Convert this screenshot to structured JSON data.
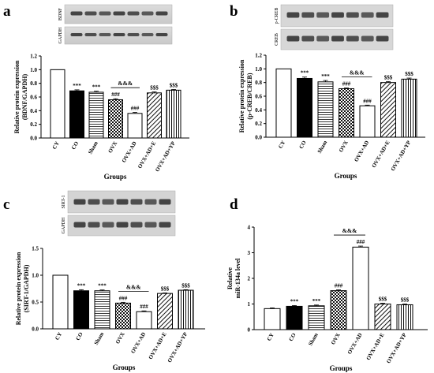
{
  "panels": [
    {
      "label": "a",
      "blot_labels": [
        "BDNF",
        "GAPDH"
      ],
      "ylabel_lines": [
        "Relative protein expression",
        "(BDNF/GAPDH)"
      ],
      "xlabel": "Groups",
      "ylim": [
        0,
        1.2
      ],
      "ytick_labels": [
        "0.0",
        "0.2",
        "0.4",
        "0.6",
        "0.8",
        "1.0",
        "1.2"
      ],
      "yticks": [
        0,
        0.2,
        0.4,
        0.6,
        0.8,
        1.0,
        1.2
      ],
      "bracket": {
        "from": 3,
        "to": 4,
        "label": "&&&"
      }
    },
    {
      "label": "b",
      "blot_labels": [
        "p-CREB",
        "CREB"
      ],
      "ylabel_lines": [
        "Relative protein expression",
        "(p-CREB/CREB)"
      ],
      "xlabel": "Groups",
      "ylim": [
        0,
        1.2
      ],
      "ytick_labels": [
        "0.0",
        "0.2",
        "0.4",
        "0.6",
        "0.8",
        "1.0",
        "1.2"
      ],
      "yticks": [
        0,
        0.2,
        0.4,
        0.6,
        0.8,
        1.0,
        1.2
      ],
      "bracket": {
        "from": 3,
        "to": 4,
        "label": "&&&"
      }
    },
    {
      "label": "c",
      "blot_labels": [
        "SIRT-1",
        "GAPDH"
      ],
      "ylabel_lines": [
        "Relative protein expression",
        "(SIRT-1/GAPDH)"
      ],
      "xlabel": "Groups",
      "ylim": [
        0,
        1.5
      ],
      "ytick_labels": [
        "0.0",
        "0.5",
        "1.0",
        "1.5"
      ],
      "yticks": [
        0,
        0.5,
        1.0,
        1.5
      ],
      "bracket": {
        "from": 3,
        "to": 4,
        "label": "&&&"
      }
    },
    {
      "label": "d",
      "blot_labels": [],
      "ylabel_lines": [
        "Relative",
        "miR-134a level"
      ],
      "xlabel": "Groups",
      "ylim": [
        0,
        4
      ],
      "ytick_labels": [
        "0",
        "1",
        "2",
        "3",
        "4"
      ],
      "yticks": [
        0,
        1,
        2,
        3,
        4
      ],
      "bracket": {
        "from": 3,
        "to": 4,
        "label": "&&&"
      }
    }
  ],
  "chart_data": [
    {
      "type": "bar",
      "panel": "a",
      "categories": [
        "CY",
        "CO",
        "Sham",
        "OVX",
        "OVX+AD",
        "OVX+AD+E",
        "OVX+AD+YP"
      ],
      "values": [
        1.0,
        0.69,
        0.67,
        0.56,
        0.36,
        0.66,
        0.7
      ],
      "errors": [
        0,
        0.015,
        0.015,
        0.015,
        0.015,
        0.015,
        0.01
      ],
      "annotations": [
        "",
        "***",
        "***",
        "###",
        "###",
        "$$$",
        "$$$"
      ],
      "xlabel": "Groups",
      "ylabel": "Relative protein expression (BDNF/GAPDH)",
      "ylim": [
        0,
        1.2
      ]
    },
    {
      "type": "bar",
      "panel": "b",
      "categories": [
        "CY",
        "CO",
        "Sham",
        "OVX",
        "OVX+AD",
        "OVX+AD+E",
        "OVX+AD+YP"
      ],
      "values": [
        1.0,
        0.86,
        0.81,
        0.71,
        0.46,
        0.8,
        0.85
      ],
      "errors": [
        0,
        0.02,
        0.02,
        0.01,
        0.01,
        0.015,
        0.015
      ],
      "annotations": [
        "",
        "***",
        "***",
        "###",
        "###",
        "$$$",
        "$$$"
      ],
      "xlabel": "Groups",
      "ylabel": "Relative protein expression (p-CREB/CREB)",
      "ylim": [
        0,
        1.2
      ]
    },
    {
      "type": "bar",
      "panel": "c",
      "categories": [
        "CY",
        "CO",
        "Sham",
        "OVX",
        "OVX+AD",
        "OVX+AD+E",
        "OVX+AD+YP"
      ],
      "values": [
        1.0,
        0.71,
        0.71,
        0.48,
        0.32,
        0.66,
        0.72
      ],
      "errors": [
        0,
        0.02,
        0.015,
        0.015,
        0.015,
        0.01,
        0.01
      ],
      "annotations": [
        "",
        "***",
        "***",
        "###",
        "###",
        "$$$",
        "$$$"
      ],
      "xlabel": "Groups",
      "ylabel": "Relative protein expression (SIRT-1/GAPDH)",
      "ylim": [
        0,
        1.5
      ]
    },
    {
      "type": "bar",
      "panel": "d",
      "categories": [
        "CY",
        "CO",
        "Sham",
        "OVX",
        "OVX+AD",
        "OVX+AD+E",
        "OVX+AD+YP"
      ],
      "values": [
        0.82,
        0.91,
        0.93,
        1.52,
        3.22,
        1.0,
        0.97
      ],
      "errors": [
        0.03,
        0.03,
        0.03,
        0.03,
        0.04,
        0.03,
        0.03
      ],
      "annotations": [
        "",
        "***",
        "***",
        "###",
        "###",
        "$$$",
        "$$$"
      ],
      "xlabel": "Groups",
      "ylabel": "Relative miR-134a level",
      "ylim": [
        0,
        4
      ]
    }
  ]
}
